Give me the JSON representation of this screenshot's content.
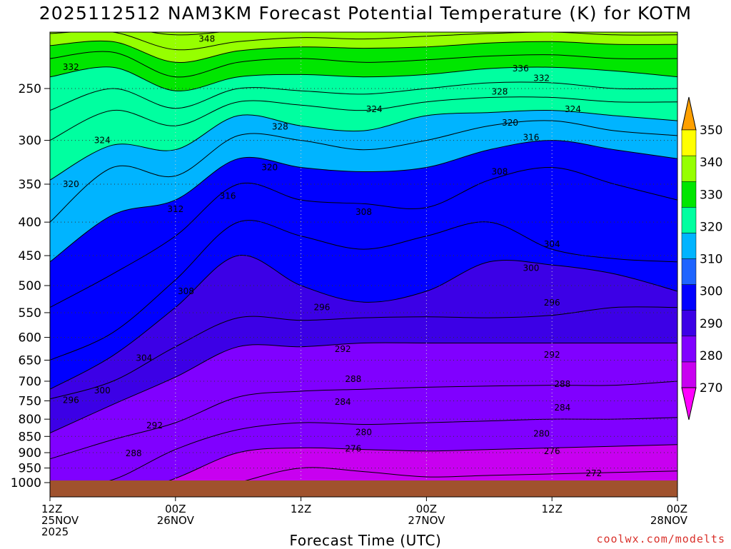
{
  "title": "2025112512 NAM3KM Forecast Potential Temperature (K) for KOTM",
  "credit": "coolwx.com/modelts",
  "chart_data": {
    "type": "heatmap",
    "title": "2025112512 NAM3KM Forecast Potential Temperature (K) for KOTM",
    "xlabel": "Forecast Time (UTC)",
    "ylabel": "",
    "x_ticks": [
      {
        "label": "12Z",
        "date": "25NOV",
        "year": "2025",
        "hours": 0
      },
      {
        "label": "00Z",
        "date": "26NOV",
        "year": "",
        "hours": 12
      },
      {
        "label": "12Z",
        "date": "",
        "year": "",
        "hours": 24
      },
      {
        "label": "00Z",
        "date": "27NOV",
        "year": "",
        "hours": 36
      },
      {
        "label": "12Z",
        "date": "",
        "year": "",
        "hours": 48
      },
      {
        "label": "00Z",
        "date": "28NOV",
        "year": "",
        "hours": 60
      }
    ],
    "xlim_hours": [
      0,
      60
    ],
    "y_ticks": [
      250,
      300,
      350,
      400,
      450,
      500,
      550,
      600,
      650,
      700,
      750,
      800,
      850,
      900,
      950,
      1000
    ],
    "ylim_hpa": [
      200,
      1050
    ],
    "y_scale": "log-pressure",
    "grid": "dotted",
    "colorbar": {
      "levels": [
        270,
        280,
        290,
        300,
        310,
        320,
        330,
        340,
        350
      ],
      "colors": [
        "#ff00ff",
        "#c800f0",
        "#8000ff",
        "#3c00e6",
        "#0000ff",
        "#1e64ff",
        "#00b4ff",
        "#00ffa0",
        "#00e600",
        "#96ff00",
        "#ffff00",
        "#ffa000"
      ]
    },
    "profiles_hours": [
      0,
      6,
      12,
      18,
      24,
      30,
      36,
      42,
      48,
      54,
      60
    ],
    "isentrope_pressure_hpa": {
      "272": [
        1060,
        1060,
        1060,
        1060,
        1060,
        1060,
        1060,
        1060,
        1060,
        1000,
        1000
      ],
      "276": [
        1060,
        1060,
        1060,
        1000,
        950,
        962,
        980,
        975,
        970,
        965,
        960
      ],
      "280": [
        1060,
        1060,
        985,
        900,
        885,
        890,
        895,
        890,
        885,
        880,
        875
      ],
      "284": [
        1030,
        990,
        890,
        830,
        810,
        815,
        810,
        805,
        800,
        800,
        795
      ],
      "288": [
        920,
        860,
        810,
        740,
        725,
        720,
        715,
        712,
        710,
        710,
        700
      ],
      "292": [
        840,
        760,
        690,
        620,
        620,
        612,
        612,
        612,
        612,
        612,
        612
      ],
      "296": [
        745,
        700,
        620,
        560,
        565,
        560,
        558,
        560,
        555,
        540,
        540
      ],
      "300": [
        720,
        640,
        540,
        450,
        500,
        530,
        510,
        460,
        465,
        480,
        510
      ],
      "304": [
        650,
        590,
        490,
        400,
        420,
        440,
        420,
        400,
        440,
        455,
        460
      ],
      "308": [
        540,
        480,
        420,
        350,
        370,
        375,
        380,
        345,
        330,
        350,
        370
      ],
      "312": [
        460,
        390,
        370,
        320,
        330,
        335,
        330,
        310,
        300,
        310,
        320
      ],
      "316": [
        400,
        330,
        340,
        295,
        300,
        310,
        300,
        285,
        280,
        290,
        295
      ],
      "320": [
        345,
        305,
        310,
        275,
        285,
        290,
        275,
        272,
        270,
        275,
        280
      ],
      "324": [
        300,
        270,
        285,
        262,
        265,
        270,
        262,
        258,
        258,
        262,
        262
      ],
      "328": [
        270,
        250,
        268,
        250,
        252,
        255,
        250,
        245,
        245,
        250,
        250
      ],
      "332": [
        240,
        232,
        252,
        240,
        238,
        240,
        238,
        233,
        232,
        235,
        240
      ],
      "336": [
        225,
        220,
        240,
        228,
        225,
        228,
        226,
        223,
        222,
        225,
        225
      ],
      "340": [
        215,
        212,
        228,
        219,
        216,
        217,
        216,
        213,
        212,
        214,
        214
      ],
      "344": [
        206,
        205,
        218,
        212,
        209,
        210,
        208,
        206,
        205,
        207,
        207
      ],
      "348": [
        201,
        201,
        207,
        204,
        203,
        203,
        202,
        201,
        201,
        202,
        202
      ]
    },
    "contour_labels": [
      {
        "text": "348",
        "h": 15.0,
        "p": 210
      },
      {
        "text": "332",
        "h": 2.0,
        "p": 232
      },
      {
        "text": "336",
        "h": 45.0,
        "p": 233
      },
      {
        "text": "332",
        "h": 47.0,
        "p": 241
      },
      {
        "text": "328",
        "h": 43.0,
        "p": 253
      },
      {
        "text": "324",
        "h": 31.0,
        "p": 269
      },
      {
        "text": "324",
        "h": 50.0,
        "p": 269
      },
      {
        "text": "328",
        "h": 22.0,
        "p": 286
      },
      {
        "text": "320",
        "h": 44.0,
        "p": 282
      },
      {
        "text": "316",
        "h": 46.0,
        "p": 297
      },
      {
        "text": "324",
        "h": 5.0,
        "p": 300
      },
      {
        "text": "320",
        "h": 21.0,
        "p": 330
      },
      {
        "text": "308",
        "h": 43.0,
        "p": 335
      },
      {
        "text": "320",
        "h": 2.0,
        "p": 350
      },
      {
        "text": "316",
        "h": 17.0,
        "p": 365
      },
      {
        "text": "312",
        "h": 12.0,
        "p": 382
      },
      {
        "text": "308",
        "h": 30.0,
        "p": 386
      },
      {
        "text": "304",
        "h": 48.0,
        "p": 432
      },
      {
        "text": "300",
        "h": 46.0,
        "p": 470
      },
      {
        "text": "308",
        "h": 13.0,
        "p": 510
      },
      {
        "text": "296",
        "h": 48.0,
        "p": 531
      },
      {
        "text": "296",
        "h": 26.0,
        "p": 540
      },
      {
        "text": "292",
        "h": 28.0,
        "p": 625
      },
      {
        "text": "292",
        "h": 48.0,
        "p": 638
      },
      {
        "text": "304",
        "h": 9.0,
        "p": 645
      },
      {
        "text": "288",
        "h": 29.0,
        "p": 695
      },
      {
        "text": "288",
        "h": 49.0,
        "p": 707
      },
      {
        "text": "300",
        "h": 5.0,
        "p": 723
      },
      {
        "text": "296",
        "h": 2.0,
        "p": 748
      },
      {
        "text": "284",
        "h": 28.0,
        "p": 753
      },
      {
        "text": "284",
        "h": 49.0,
        "p": 768
      },
      {
        "text": "292",
        "h": 10.0,
        "p": 818
      },
      {
        "text": "280",
        "h": 30.0,
        "p": 838
      },
      {
        "text": "280",
        "h": 47.0,
        "p": 842
      },
      {
        "text": "288",
        "h": 8.0,
        "p": 902
      },
      {
        "text": "276",
        "h": 29.0,
        "p": 888
      },
      {
        "text": "276",
        "h": 48.0,
        "p": 895
      },
      {
        "text": "272",
        "h": 52.0,
        "p": 968
      }
    ]
  }
}
